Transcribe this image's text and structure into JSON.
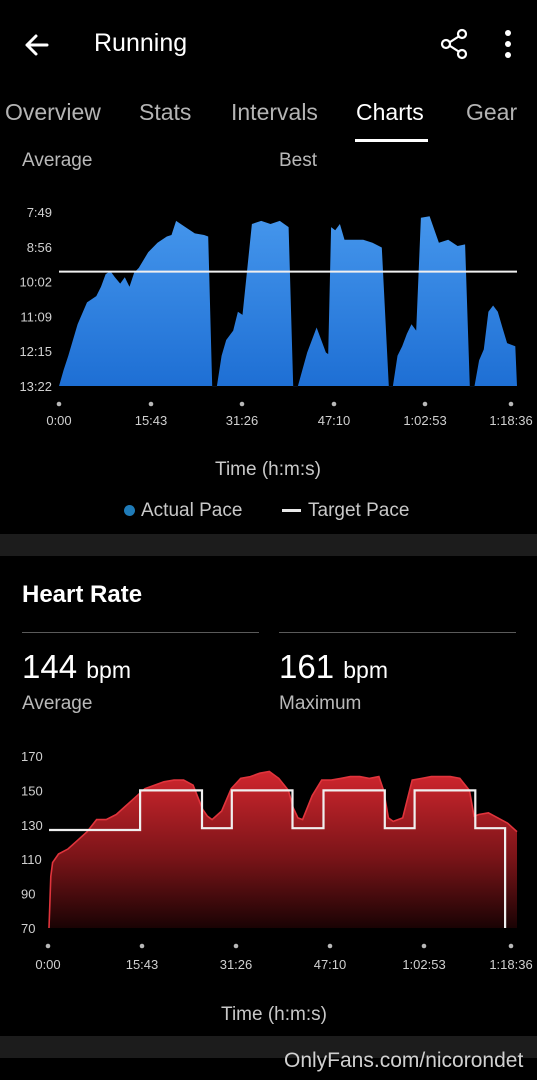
{
  "header": {
    "title": "Running",
    "back_icon": "arrow-left-icon",
    "share_icon": "share-icon",
    "menu_icon": "more-vert-icon"
  },
  "tabs": [
    {
      "label": "Overview",
      "active": false
    },
    {
      "label": "Stats",
      "active": false
    },
    {
      "label": "Intervals",
      "active": false
    },
    {
      "label": "Charts",
      "active": true
    },
    {
      "label": "Gear",
      "active": false
    }
  ],
  "pace_section": {
    "average_label": "Average",
    "best_label": "Best",
    "legend": {
      "actual": "Actual Pace",
      "target": "Target Pace"
    }
  },
  "hr_section": {
    "title": "Heart Rate",
    "average": {
      "value": "144",
      "unit": "bpm",
      "label": "Average"
    },
    "maximum": {
      "value": "161",
      "unit": "bpm",
      "label": "Maximum"
    }
  },
  "watermark": "OnlyFans.com/nicorondet",
  "colors": {
    "pace_fill": "#2b84e0",
    "hr_fill": "#c3202a",
    "target_line": "#f0f0f0",
    "legend_dot": "#1f7bb8"
  },
  "chart_data": [
    {
      "type": "area",
      "id": "pace",
      "xlabel": "Time (h:m:s)",
      "ylabel": "",
      "y_ticks": [
        "7:49",
        "8:56",
        "10:02",
        "11:09",
        "12:15",
        "13:22"
      ],
      "y_reversed": true,
      "x_ticks": [
        "0:00",
        "15:43",
        "31:26",
        "47:10",
        "1:02:53",
        "1:18:36"
      ],
      "xlim_minutes": [
        0,
        78.6
      ],
      "ylim_minutes": [
        7.817,
        13.367
      ],
      "target_pace_minutes": 9.72,
      "series": [
        {
          "name": "Actual Pace",
          "x_minutes": [
            0,
            0.8,
            1.6,
            3.2,
            4.8,
            6.4,
            7.2,
            8.0,
            8.8,
            9.6,
            10.5,
            11.3,
            12.1,
            12.9,
            13.7,
            15.3,
            16.9,
            18.5,
            19.3,
            20.1,
            21.7,
            23.3,
            24.9,
            25.6,
            26.3,
            27.1,
            27.9,
            28.7,
            29.9,
            30.7,
            31.5,
            33.1,
            34.7,
            36.3,
            37.9,
            39.4,
            40.2,
            41.0,
            42.6,
            44.2,
            45.8,
            46.2,
            46.7,
            47.4,
            48.2,
            49.0,
            50.6,
            52.2,
            53.8,
            55.4,
            56.6,
            57.3,
            58.1,
            58.9,
            59.7,
            60.5,
            61.3,
            62.1,
            63.6,
            65.2,
            66.8,
            68.4,
            69.7,
            70.5,
            71.3,
            72.1,
            72.9,
            73.7,
            74.5,
            75.3,
            76.1,
            76.9,
            78.3,
            78.6
          ],
          "y_minutes": [
            13.37,
            12.85,
            12.4,
            11.4,
            10.7,
            10.5,
            10.2,
            9.8,
            9.7,
            9.9,
            10.1,
            9.9,
            10.2,
            9.75,
            9.6,
            9.1,
            8.8,
            8.6,
            8.55,
            8.1,
            8.3,
            8.5,
            8.55,
            8.6,
            13.37,
            13.37,
            12.4,
            11.9,
            11.6,
            11.0,
            11.1,
            8.2,
            8.1,
            8.2,
            8.1,
            8.3,
            13.37,
            13.37,
            12.3,
            11.5,
            12.3,
            12.35,
            8.3,
            8.4,
            8.2,
            8.7,
            8.7,
            8.7,
            8.8,
            8.95,
            13.37,
            13.37,
            12.4,
            12.1,
            11.7,
            11.4,
            11.6,
            8.0,
            7.95,
            8.8,
            8.7,
            8.9,
            8.85,
            13.37,
            13.37,
            12.55,
            12.2,
            11.0,
            10.8,
            11.0,
            11.5,
            12.0,
            12.1,
            13.37
          ]
        }
      ]
    },
    {
      "type": "area",
      "id": "heart_rate",
      "xlabel": "Time (h:m:s)",
      "ylabel": "",
      "y_ticks": [
        "170",
        "150",
        "130",
        "110",
        "90",
        "70"
      ],
      "x_ticks": [
        "0:00",
        "15:43",
        "31:26",
        "47:10",
        "1:02:53",
        "1:18:36"
      ],
      "xlim_minutes": [
        0,
        78.6
      ],
      "ylim": [
        70,
        170
      ],
      "series": [
        {
          "name": "Heart Rate",
          "x_minutes": [
            0,
            0.3,
            0.6,
            1.6,
            3.2,
            4.8,
            6.4,
            8.0,
            9.6,
            11.3,
            12.9,
            14.5,
            16.1,
            17.7,
            19.3,
            21.0,
            22.6,
            24.2,
            25.0,
            25.8,
            26.6,
            27.4,
            29.0,
            30.6,
            32.2,
            33.8,
            35.4,
            37.0,
            38.6,
            40.2,
            41.0,
            41.8,
            42.6,
            44.2,
            45.8,
            47.4,
            49.0,
            50.6,
            52.2,
            53.8,
            55.4,
            56.2,
            57.0,
            57.8,
            59.4,
            61.0,
            62.6,
            64.2,
            65.8,
            67.4,
            69.0,
            70.6,
            71.4,
            72.2,
            73.8,
            75.4,
            77.0,
            78.6
          ],
          "y": [
            70,
            100,
            108,
            113,
            116,
            121,
            126,
            133,
            133,
            136,
            141,
            146,
            151,
            153,
            155,
            156,
            156,
            153,
            146,
            139,
            135,
            133,
            138,
            151,
            157,
            158,
            160,
            161,
            157,
            150,
            140,
            134,
            133,
            147,
            156,
            156,
            157,
            158,
            158,
            157,
            158,
            150,
            134,
            132,
            134,
            156,
            157,
            158,
            158,
            158,
            157,
            150,
            135,
            136,
            137,
            134,
            131,
            126
          ]
        },
        {
          "name": "Target",
          "x_minutes": [
            0,
            15.3,
            15.3,
            25.7,
            25.7,
            30.7,
            30.7,
            40.9,
            40.9,
            46.1,
            46.1,
            56.4,
            56.4,
            61.4,
            61.4,
            71.6,
            71.6,
            76.6,
            76.6
          ],
          "y": [
            127,
            127,
            150,
            150,
            128,
            128,
            150,
            150,
            128,
            128,
            150,
            150,
            128,
            128,
            150,
            150,
            128,
            128,
            70
          ]
        }
      ]
    }
  ]
}
